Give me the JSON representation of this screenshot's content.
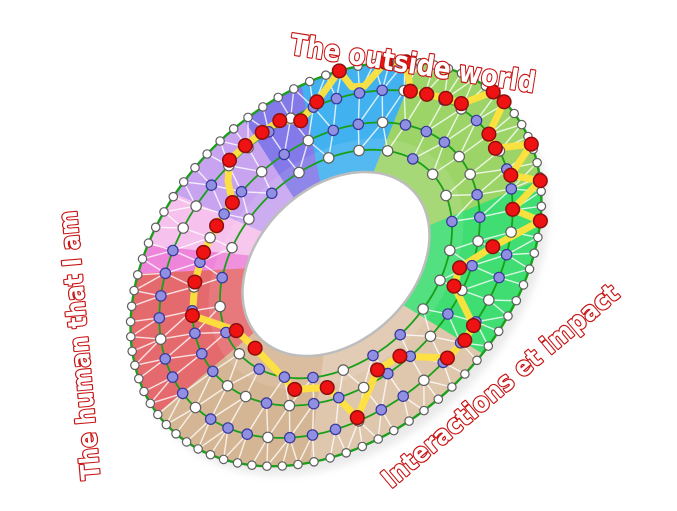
{
  "labels": {
    "top": "The outside world",
    "left": "The human that I am",
    "bottom_right": "Interactions et impact"
  },
  "label_style": {
    "fill": "#ffffff",
    "outline": "#c81414"
  },
  "wheel": {
    "matrix": [
      205,
      -50,
      -14,
      196,
      336,
      264
    ],
    "hole_radius": 0.455,
    "rings": {
      "radii": [
        1.0,
        0.86,
        0.7,
        0.565
      ],
      "counts": [
        80,
        48,
        36,
        24
      ],
      "offsets": [
        2.25,
        3.75,
        5.0,
        7.5
      ],
      "dot_sizes": [
        4.2,
        5.2,
        5.2,
        5.2
      ],
      "patterns": [
        "w",
        "ppwppwppwpppwppwpppwppwpppwpppwpppwppppwwpwwpwpp",
        "pwpppwwppwpwpwppwppwpwwppppwpwppwpwp",
        "wwpwwpwwwppwpppwpwpwwpww"
      ]
    },
    "sectors": [
      {
        "name": "blue",
        "color": "#41b1ef",
        "from": 346,
        "to": 380
      },
      {
        "name": "green-light",
        "color": "#9cd468",
        "from": 20,
        "to": 80
      },
      {
        "name": "green-bright",
        "color": "#3fdd72",
        "from": 80,
        "to": 131
      },
      {
        "name": "tan-light",
        "color": "#dfc7ad",
        "from": 131,
        "to": 184
      },
      {
        "name": "tan-dark",
        "color": "#d5b694",
        "from": 184,
        "to": 237
      },
      {
        "name": "red",
        "color": "#e56a6e",
        "from": 237,
        "to": 282
      },
      {
        "name": "pink-bright",
        "color": "#ee85da",
        "from": 282,
        "to": 290
      },
      {
        "name": "pink-light",
        "color": "#f6c1ec",
        "from": 290,
        "to": 305
      },
      {
        "name": "violet-light",
        "color": "#c8a4f0",
        "from": 305,
        "to": 330
      },
      {
        "name": "violet-dark",
        "color": "#8379e8",
        "from": 330,
        "to": 346
      }
    ],
    "edge_links": [
      [
        0,
        1,
        5.2
      ],
      [
        1,
        2,
        8.5
      ],
      [
        2,
        3,
        11.5
      ]
    ],
    "path": {
      "points": [
        [
          0.8,
          315,
          0
        ],
        [
          0.88,
          320,
          1
        ],
        [
          0.88,
          326,
          1
        ],
        [
          0.88,
          332,
          1
        ],
        [
          0.88,
          338,
          1
        ],
        [
          0.82,
          344,
          1
        ],
        [
          0.88,
          350,
          1
        ],
        [
          1.0,
          357,
          1
        ],
        [
          0.9,
          1,
          0
        ],
        [
          0.89,
          5,
          0
        ],
        [
          1.0,
          10,
          1
        ],
        [
          1.0,
          16,
          1
        ],
        [
          0.86,
          21,
          1
        ],
        [
          0.86,
          27,
          1
        ],
        [
          0.87,
          34,
          1
        ],
        [
          0.88,
          40,
          1
        ],
        [
          1.0,
          46,
          1
        ],
        [
          1.0,
          51,
          1
        ],
        [
          0.86,
          56,
          1
        ],
        [
          0.85,
          62,
          1
        ],
        [
          1.0,
          68,
          1
        ],
        [
          0.87,
          74,
          1
        ],
        [
          1.0,
          80,
          1
        ],
        [
          0.86,
          86,
          1
        ],
        [
          1.0,
          92,
          1
        ],
        [
          0.78,
          98,
          1
        ],
        [
          0.64,
          106,
          1
        ],
        [
          0.65,
          114,
          1
        ],
        [
          0.86,
          125,
          1
        ],
        [
          0.87,
          130,
          1
        ],
        [
          0.86,
          137,
          1
        ],
        [
          0.66,
          148,
          1
        ],
        [
          0.65,
          158,
          1
        ],
        [
          0.84,
          169,
          1
        ],
        [
          0.63,
          180,
          1
        ],
        [
          0.62,
          195,
          1
        ],
        [
          0.5,
          228,
          1
        ],
        [
          0.52,
          245,
          1
        ],
        [
          0.7,
          263,
          1
        ],
        [
          0.7,
          277,
          1
        ],
        [
          0.7,
          289,
          1
        ],
        [
          0.7,
          300,
          1
        ],
        [
          0.7,
          310,
          1
        ]
      ]
    },
    "colors": {
      "ring_green": "#18a018",
      "edge_white": "#ffffff",
      "path_yellow": "#ffe23c",
      "node_white": "#ffffff",
      "node_white_stroke": "#5f5f5f",
      "node_purple": "#918fe2",
      "node_purple_stroke": "#37379b",
      "node_red": "#ee1212",
      "node_red_stroke": "#8f0f0f",
      "hole_fill": "#ffffff",
      "hole_stroke": "#bdbdbd",
      "shadow": "#d8d8d8"
    }
  }
}
